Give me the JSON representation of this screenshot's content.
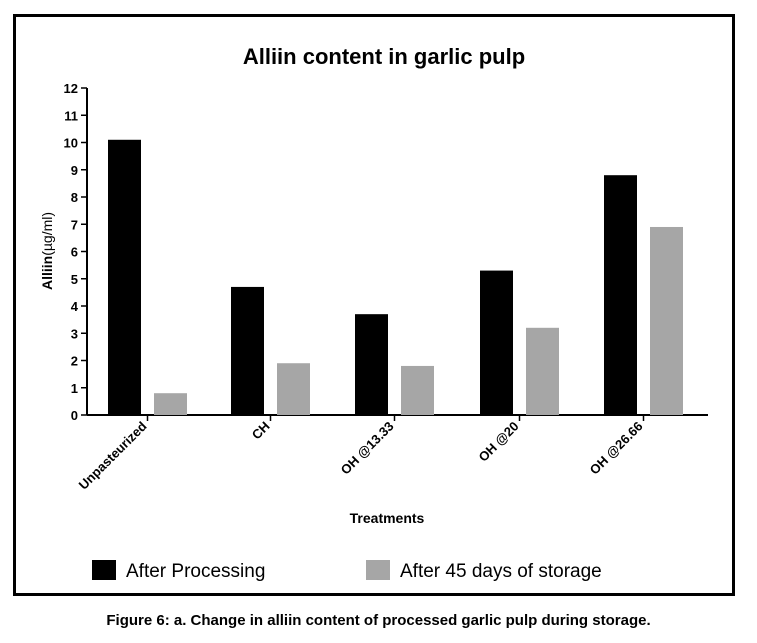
{
  "caption": "Figure 6: a. Change in alliin content of processed garlic pulp during storage.",
  "chart_data": {
    "type": "bar",
    "title": "Alliin content in garlic pulp",
    "xlabel": "Treatments",
    "ylabel_main": "Alliin",
    "ylabel_unit": "(µg/ml)",
    "ylim": [
      0,
      12
    ],
    "yticks": [
      0,
      1,
      2,
      3,
      4,
      5,
      6,
      7,
      8,
      9,
      10,
      11,
      12
    ],
    "grid": false,
    "legend_position": "bottom",
    "categories": [
      "Unpasteurized",
      "CH",
      "OH @13.33",
      "OH @20",
      "OH @26.66"
    ],
    "series": [
      {
        "name": "After Processing",
        "color": "#000000",
        "values": [
          10.1,
          4.7,
          3.7,
          5.3,
          8.8
        ]
      },
      {
        "name": "After 45 days of storage",
        "color": "#a6a6a6",
        "values": [
          0.8,
          1.9,
          1.8,
          3.2,
          6.9
        ]
      }
    ]
  }
}
